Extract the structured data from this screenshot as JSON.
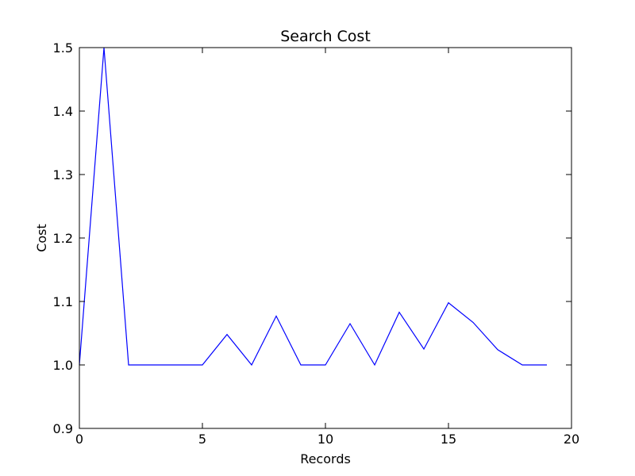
{
  "chart_data": {
    "type": "line",
    "title": "Search Cost",
    "xlabel": "Records",
    "ylabel": "Cost",
    "xlim": [
      0,
      20
    ],
    "ylim": [
      0.9,
      1.5
    ],
    "xticks": [
      0,
      5,
      10,
      15,
      20
    ],
    "xtick_labels": [
      "0",
      "5",
      "10",
      "15",
      "20"
    ],
    "yticks": [
      0.9,
      1.0,
      1.1,
      1.2,
      1.3,
      1.4,
      1.5
    ],
    "ytick_labels": [
      "0.9",
      "1.0",
      "1.1",
      "1.2",
      "1.3",
      "1.4",
      "1.5"
    ],
    "grid": false,
    "series": [
      {
        "color": "#0000ff",
        "x": [
          0,
          1,
          2,
          3,
          4,
          5,
          6,
          7,
          8,
          9,
          10,
          11,
          12,
          13,
          14,
          15,
          16,
          17,
          18,
          19
        ],
        "values": [
          1.0,
          1.5,
          1.0,
          1.0,
          1.0,
          1.0,
          1.048,
          1.0,
          1.077,
          1.0,
          1.0,
          1.065,
          1.0,
          1.083,
          1.025,
          1.098,
          1.067,
          1.024,
          1.0,
          1.0
        ]
      }
    ]
  }
}
